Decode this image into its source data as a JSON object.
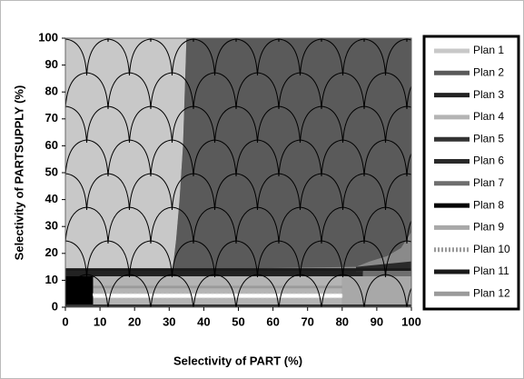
{
  "chart_data": {
    "type": "plan-diagram",
    "xlabel": "Selectivity of PART (%)",
    "ylabel": "Selectivity of PARTSUPPLY (%)",
    "xlim": [
      0,
      100
    ],
    "ylim": [
      0,
      100
    ],
    "xticks": [
      0,
      10,
      20,
      30,
      40,
      50,
      60,
      70,
      80,
      90,
      100
    ],
    "yticks": [
      0,
      10,
      20,
      30,
      40,
      50,
      60,
      70,
      80,
      90,
      100
    ],
    "series": [
      {
        "name": "Plan 1",
        "color": "#c8c8c8",
        "x": [
          0,
          35,
          34.5,
          34,
          33,
          32,
          31,
          0
        ],
        "y": [
          100,
          100,
          80,
          60,
          40,
          25,
          14,
          14
        ]
      },
      {
        "name": "Plan 2",
        "color": "#5a5a5a",
        "x": [
          35,
          100,
          100,
          97,
          93,
          88,
          84,
          31,
          32,
          33,
          34,
          34.5
        ],
        "y": [
          100,
          100,
          28,
          22,
          19,
          17,
          15,
          14,
          25,
          40,
          60,
          80
        ]
      },
      {
        "name": "Plan 3",
        "color": "#222222",
        "x": [
          0,
          86,
          86,
          0
        ],
        "y": [
          13.5,
          13.5,
          11.5,
          11.5
        ]
      },
      {
        "name": "Plan 4",
        "color": "#b4b4b4",
        "x": [
          8,
          80,
          80,
          8
        ],
        "y": [
          11.5,
          11.5,
          1,
          1
        ]
      },
      {
        "name": "Plan 5",
        "color": "#333333",
        "x": [
          0,
          100,
          100,
          0
        ],
        "y": [
          1,
          1,
          0,
          0
        ]
      },
      {
        "name": "Plan 6",
        "color": "#2a2a2a",
        "x": [
          84,
          100,
          100,
          84
        ],
        "y": [
          15,
          17,
          13,
          13
        ]
      },
      {
        "name": "Plan 7",
        "color": "#6e6e6e",
        "x": [
          86,
          100,
          100,
          86
        ],
        "y": [
          13.5,
          13.5,
          11.5,
          11.5
        ]
      },
      {
        "name": "Plan 8",
        "color": "#000000",
        "x": [
          0,
          8,
          8,
          0
        ],
        "y": [
          11.5,
          11.5,
          1,
          1
        ]
      },
      {
        "name": "Plan 9",
        "color": "#a8a8a8",
        "x": [
          80,
          100,
          100,
          80
        ],
        "y": [
          11.5,
          11.5,
          1,
          1
        ]
      },
      {
        "name": "Plan 10",
        "color": "#ffffff",
        "dashed": true,
        "x": [
          8,
          80,
          80,
          8
        ],
        "y": [
          5,
          5,
          3.5,
          3.5
        ]
      },
      {
        "name": "Plan 11",
        "color": "#1a1a1a",
        "x": [
          0,
          100,
          100,
          0
        ],
        "y": [
          14.5,
          14.5,
          13.5,
          13.5
        ]
      },
      {
        "name": "Plan 12",
        "color": "#9a9a9a",
        "x": [
          8,
          80,
          80,
          8
        ],
        "y": [
          8,
          8,
          7,
          7
        ]
      }
    ]
  }
}
